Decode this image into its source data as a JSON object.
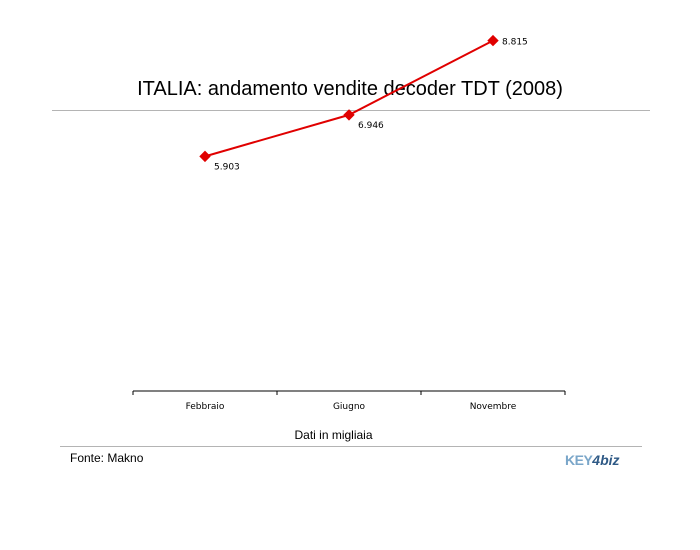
{
  "title": "ITALIA: andamento vendite decoder TDT (2008)",
  "note": "Dati in migliaia",
  "source": "Fonte: Makno",
  "logo": {
    "key": "KEY",
    "four": "4",
    "biz": "biz"
  },
  "chart_data": {
    "type": "line",
    "title": "ITALIA: andamento vendite decoder TDT (2008)",
    "categories": [
      "Febbraio",
      "Giugno",
      "Novembre"
    ],
    "values": [
      5903,
      6946,
      8815
    ],
    "data_labels": [
      "5.903",
      "6.946",
      "8.815"
    ],
    "color": "#e00000",
    "marker": "diamond",
    "grid": false,
    "legend": "none"
  }
}
